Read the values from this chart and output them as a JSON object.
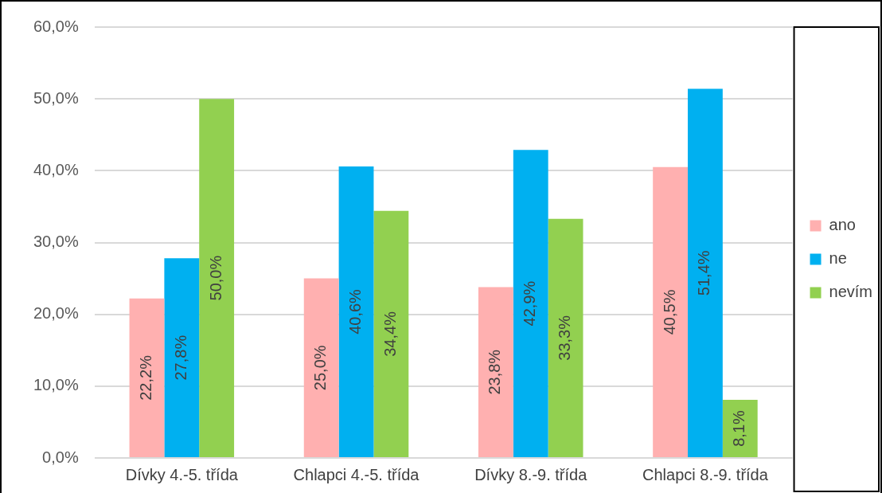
{
  "chart_data": {
    "type": "bar",
    "categories": [
      "Dívky 4.-5. třída",
      "Chlapci 4.-5. třída",
      "Dívky 8.-9. třída",
      "Chlapci 8.-9. třída"
    ],
    "series": [
      {
        "name": "ano",
        "color": "#ffb0b0",
        "values": [
          22.2,
          25.0,
          23.8,
          40.5
        ],
        "value_labels": [
          "22,2%",
          "25,0%",
          "23,8%",
          "40,5%"
        ]
      },
      {
        "name": "ne",
        "color": "#00b0f0",
        "values": [
          27.8,
          40.6,
          42.9,
          51.4
        ],
        "value_labels": [
          "27,8%",
          "40,6%",
          "42,9%",
          "51,4%"
        ]
      },
      {
        "name": "nevím",
        "color": "#92d050",
        "values": [
          50.0,
          34.4,
          33.3,
          8.1
        ],
        "value_labels": [
          "50,0%",
          "34,4%",
          "33,3%",
          "8,1%"
        ]
      }
    ],
    "ylim": [
      0,
      60
    ],
    "yticks": [
      {
        "value": 0,
        "label": "0,0%"
      },
      {
        "value": 10,
        "label": "10,0%"
      },
      {
        "value": 20,
        "label": "20,0%"
      },
      {
        "value": 30,
        "label": "30,0%"
      },
      {
        "value": 40,
        "label": "40,0%"
      },
      {
        "value": 50,
        "label": "50,0%"
      },
      {
        "value": 60,
        "label": "60,0%"
      }
    ],
    "grid": "y",
    "legend": "right"
  }
}
